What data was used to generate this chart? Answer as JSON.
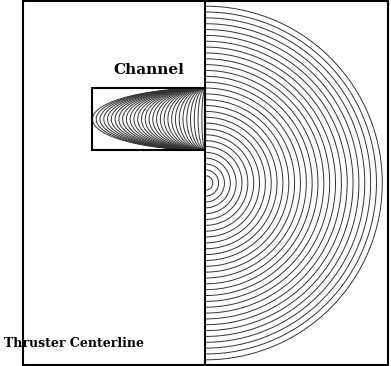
{
  "channel_label": "Channel",
  "centerline_label": "Thruster Centerline",
  "bg_color": "#ffffff",
  "line_color": "#333333",
  "line_width": 0.7,
  "r_inner": 0.18,
  "r_outer": 0.52,
  "channel_depth": 0.62,
  "n_lines_channel": 30,
  "n_lines_outside": 30,
  "r_min_out": 0.04,
  "r_max_out": 0.97
}
